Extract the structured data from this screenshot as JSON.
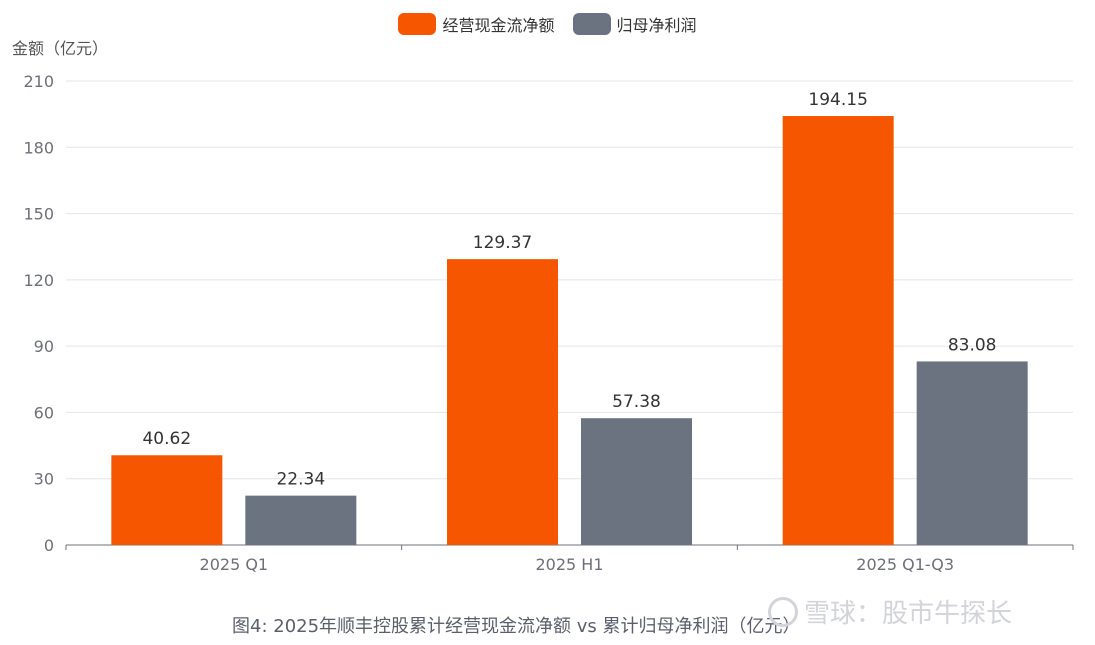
{
  "legend": {
    "items": [
      {
        "label": "经营现金流净额",
        "color": "#F75600"
      },
      {
        "label": "归母净利润",
        "color": "#6B7280"
      }
    ]
  },
  "caption": "图4: 2025年顺丰控股累计经营现金流净额 vs 累计归母净利润（亿元）",
  "watermark": "雪球：股市牛探长",
  "chart_data": {
    "type": "bar",
    "categories": [
      "2025 Q1",
      "2025 H1",
      "2025 Q1-Q3"
    ],
    "series": [
      {
        "name": "经营现金流净额",
        "values": [
          40.62,
          129.37,
          194.15
        ],
        "labels": [
          "40.62",
          "129.37",
          "194.15"
        ],
        "color": "#F75600"
      },
      {
        "name": "归母净利润",
        "values": [
          22.34,
          57.38,
          83.08
        ],
        "labels": [
          "22.34",
          "57.38",
          "83.08"
        ],
        "color": "#6B7280"
      }
    ],
    "title": "",
    "xlabel": "",
    "ylabel": "金额（亿元）",
    "ylim": [
      0,
      210
    ],
    "yticks": [
      "0",
      "30",
      "60",
      "90",
      "120",
      "150",
      "180",
      "210"
    ],
    "grid": true,
    "legend_position": "top-center"
  }
}
